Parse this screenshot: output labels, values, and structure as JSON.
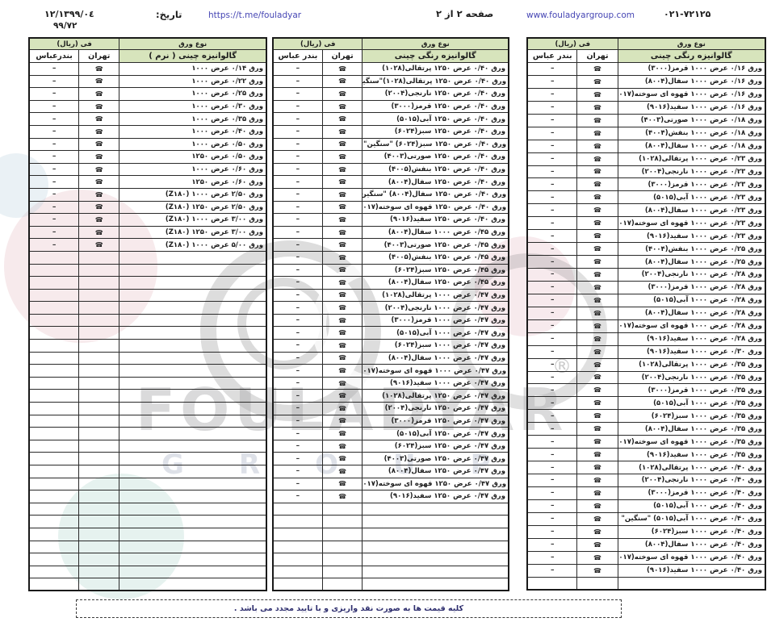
{
  "header": {
    "phone": "۰۲۱-۷۲۱۲۵",
    "website": "www.fouladyargroup.com",
    "page_number": "صفحه ۲ از ۲",
    "telegram": "https://t.me/fouladyar",
    "date_label": "تاریخ:",
    "date_value": "۱۳۹۹/۰٤/۱۲",
    "date_code": "۹۹/۷۲"
  },
  "price_symbols": {
    "tehran_symbol": "☎",
    "bandar_symbol": "–"
  },
  "colors": {
    "header_green": "#d7e4bc",
    "border": "#1a1a1a",
    "link_blue": "#4646b4",
    "footer_text": "#2e2e6e"
  },
  "tables": [
    {
      "id": "galvanized-soft",
      "headers": {
        "type": "نوع ورق",
        "price": "فی (ریال)",
        "tehran": "تهران",
        "bandar": "بندرعباس"
      },
      "title": "گالوانیزه چینی ( نرم )",
      "empty_rows": 27,
      "rows": [
        "ورق ۰/۱۴ عرض ۱۰۰۰",
        "ورق ۰/۲۲ عرض ۱۰۰۰",
        "ورق ۰/۲۵ عرض ۱۰۰۰",
        "ورق ۰/۳۰ عرض ۱۰۰۰",
        "ورق ۰/۳۵ عرض ۱۰۰۰",
        "ورق ۰/۴۰ عرض ۱۰۰۰",
        "ورق ۰/۵۰ عرض ۱۰۰۰",
        "ورق ۰/۵۰ عرض ۱۲۵۰",
        "ورق ۰/۶۰ عرض ۱۰۰۰",
        "ورق ۰/۶۰ عرض ۱۲۵۰",
        "ورق ۲/۵۰ عرض ۱۰۰۰ (Z۱۸۰)",
        "ورق ۲/۵۰ عرض ۱۲۵۰ (Z۱۸۰)",
        "ورق ۳/۰۰ عرض ۱۰۰۰ (Z۱۸۰)",
        "ورق ۳/۰۰ عرض ۱۲۵۰ (Z۱۸۰)",
        "ورق ۵/۰۰ عرض ۱۰۰۰ (Z۱۸۰)"
      ]
    },
    {
      "id": "galvanized-color-1250",
      "headers": {
        "type": "نوع ورق",
        "price": "فی (ریال)",
        "tehran": "تهران",
        "bandar": "بندر عباس"
      },
      "title": "گالوانیزه رنگی چینی",
      "empty_rows": 7,
      "rows": [
        "ورق ۰/۴۰ عرض ۱۲۵۰ پرتقالی(۱۰۲۸)",
        "ورق ۰/۴۰ عرض ۱۲۵۰ پرتقالی(۱۰۲۸)\"سنگین\"",
        "ورق ۰/۴۰ عرض ۱۲۵۰ نارنجی(۲۰۰۴)",
        "ورق ۰/۴۰ عرض ۱۲۵۰ قرمز(۳۰۰۰)",
        "ورق ۰/۴۰ عرض ۱۲۵۰ آبی(۵۰۱۵)",
        "ورق ۰/۴۰ عرض ۱۲۵۰ سبز(۶۰۲۴)",
        "ورق ۰/۴۰ عرض ۱۲۵۰ سبز(۶۰۲۴) \"سنگین\"",
        "ورق ۰/۴۰ عرض ۱۲۵۰ صورتی(۴۰۰۳)",
        "ورق ۰/۴۰ عرض ۱۲۵۰ بنفش(۴۰۰۵)",
        "ورق ۰/۴۰ عرض ۱۲۵۰ سفال(۸۰۰۴)",
        "ورق ۰/۴۰ عرض ۱۲۵۰ سفال(۸۰۰۴) \"سنگین\"",
        "ورق ۰/۴۰ عرض ۱۲۵۰ قهوه ای سوخته(۸۰۱۷)",
        "ورق ۰/۴۰ عرض ۱۲۵۰ سفید(۹۰۱۶)",
        "ورق ۰/۴۵ عرض ۱۰۰۰ سفال(۸۰۰۴)",
        "ورق ۰/۴۵ عرض ۱۲۵۰ صورتی(۴۰۰۳)",
        "ورق ۰/۴۵ عرض ۱۲۵۰ بنفش(۴۰۰۵)",
        "ورق ۰/۴۵ عرض ۱۲۵۰ سبز(۶۰۲۴)",
        "ورق ۰/۴۵ عرض ۱۲۵۰ سفال(۸۰۰۴)",
        "ورق ۰/۴۷ عرض ۱۰۰۰ پرتقالی(۱۰۲۸)",
        "ورق ۰/۴۷ عرض ۱۰۰۰ نارنجی(۲۰۰۴)",
        "ورق ۰/۴۷ عرض ۱۰۰۰ قرمز(۳۰۰۰)",
        "ورق ۰/۴۷ عرض ۱۰۰۰ آبی(۵۰۱۵)",
        "ورق ۰/۴۷ عرض ۱۰۰۰ سبز(۶۰۲۴)",
        "ورق ۰/۴۷ عرض ۱۰۰۰ سفال(۸۰۰۴)",
        "ورق ۰/۴۷ عرض ۱۰۰۰ قهوه ای سوخته(۸۰۱۷)",
        "ورق ۰/۴۷ عرض ۱۰۰۰ سفید(۹۰۱۶)",
        "ورق ۰/۴۷ عرض ۱۲۵۰ پرتقالی(۱۰۲۸)",
        "ورق ۰/۴۷ عرض ۱۲۵۰ نارنجی(۲۰۰۴)",
        "ورق ۰/۴۷ عرض ۱۲۵۰ قرمز(۳۰۰۰)",
        "ورق ۰/۴۷ عرض ۱۲۵۰ آبی(۵۰۱۵)",
        "ورق ۰/۴۷ عرض ۱۲۵۰ سبز(۶۰۲۴)",
        "ورق ۰/۴۷ عرض ۱۲۵۰ صورتی(۴۰۰۳)",
        "ورق ۰/۴۷ عرض ۱۲۵۰ سفال(۸۰۰۴)",
        "ورق ۰/۴۷ عرض ۱۲۵۰ قهوه ای سوخته(۸۰۱۷)",
        "ورق ۰/۴۷ عرض ۱۲۵۰ سفید(۹۰۱۶)"
      ]
    },
    {
      "id": "galvanized-color-1000",
      "headers": {
        "type": "نوع ورق",
        "price": "فی (ریال)",
        "tehran": "تهران",
        "bandar": "بندر عباس"
      },
      "title": "گالوانیزه رنگی چینی",
      "empty_rows": 1,
      "rows": [
        "ورق ۰/۱۶ عرض ۱۰۰۰ قرمز(۳۰۰۰)",
        "ورق ۰/۱۶ عرض ۱۰۰۰ سفال(۸۰۰۴)",
        "ورق ۰/۱۶ عرض ۱۰۰۰ قهوه ای سوخته(۸۰۱۷)",
        "ورق ۰/۱۶ عرض ۱۰۰۰ سفید(۹۰۱۶)",
        "ورق ۰/۱۸ عرض ۱۰۰۰ صورتی(۴۰۰۳)",
        "ورق ۰/۱۸ عرض ۱۰۰۰ بنفش(۴۰۰۴)",
        "ورق ۰/۱۸ عرض ۱۰۰۰ سفال(۸۰۰۴)",
        "ورق ۰/۲۳ عرض ۱۰۰۰ پرتقالی(۱۰۲۸)",
        "ورق ۰/۲۳ عرض ۱۰۰۰ نارنجی(۲۰۰۴)",
        "ورق ۰/۲۳ عرض ۱۰۰۰ قرمز(۳۰۰۰)",
        "ورق ۰/۲۳ عرض ۱۰۰۰ آبی(۵۰۱۵)",
        "ورق ۰/۲۳ عرض ۱۰۰۰ سفال(۸۰۰۴)",
        "ورق ۰/۲۳ عرض ۱۰۰۰ قهوه ای سوخته(۸۰۱۷)",
        "ورق ۰/۲۳ عرض ۱۰۰۰ سفید(۹۰۱۶)",
        "ورق ۰/۲۵ عرض ۱۰۰۰ بنفش(۴۰۰۴)",
        "ورق ۰/۲۵ عرض ۱۰۰۰ سفال(۸۰۰۴)",
        "ورق ۰/۲۸ عرض ۱۰۰۰ نارنجی(۲۰۰۴)",
        "ورق ۰/۲۸ عرض ۱۰۰۰ قرمز(۳۰۰۰)",
        "ورق ۰/۲۸ عرض ۱۰۰۰ آبی(۵۰۱۵)",
        "ورق ۰/۲۸ عرض ۱۰۰۰ سفال(۸۰۰۴)",
        "ورق ۰/۲۸ عرض ۱۰۰۰ قهوه ای سوخته(۸۰۱۷)",
        "ورق ۰/۲۸ عرض ۱۰۰۰ سفید(۹۰۱۶)",
        "ورق ۰/۳۰ عرض ۱۰۰۰ سفید(۹۰۱۶)",
        "ورق ۰/۳۵ عرض ۱۰۰۰ پرتقالی(۱۰۲۸)",
        "ورق ۰/۳۵ عرض ۱۰۰۰ نارنجی(۲۰۰۴)",
        "ورق ۰/۳۵ عرض ۱۰۰۰ قرمز(۳۰۰۰)",
        "ورق ۰/۳۵ عرض ۱۰۰۰ آبی(۵۰۱۵)",
        "ورق ۰/۳۵ عرض ۱۰۰۰ سبز(۶۰۲۴)",
        "ورق ۰/۳۵ عرض ۱۰۰۰ سفال(۸۰۰۴)",
        "ورق ۰/۳۵ عرض ۱۰۰۰ قهوه ای سوخته(۸۰۱۷)",
        "ورق ۰/۳۵ عرض ۱۰۰۰ سفید(۹۰۱۶)",
        "ورق ۰/۴۰ عرض ۱۰۰۰ پرتقالی(۱۰۲۸)",
        "ورق ۰/۴۰ عرض ۱۰۰۰ نارنجی(۲۰۰۴)",
        "ورق ۰/۴۰ عرض ۱۰۰۰ قرمز(۳۰۰۰)",
        "ورق ۰/۴۰ عرض ۱۰۰۰ آبی(۵۰۱۵)",
        "ورق ۰/۴۰ عرض ۱۰۰۰ آبی(۵۰۱۵) \"سنگین\"",
        "ورق ۰/۴۰ عرض ۱۰۰۰ سبز(۶۰۲۴)",
        "ورق ۰/۴۰ عرض ۱۰۰۰ سفال(۸۰۰۴)",
        "ورق ۰/۴۰ عرض ۱۰۰۰ قهوه ای سوخته(۸۰۱۷)",
        "ورق ۰/۴۰ عرض ۱۰۰۰ سفید(۹۰۱۶)"
      ]
    }
  ],
  "watermark": {
    "brand": "FOULADYAR",
    "group": "GROUP",
    "registered": "®"
  },
  "footer": {
    "note": "کلیه قیمت ها به صورت نقد واریزی و با تایید مجدد می باشد ."
  }
}
